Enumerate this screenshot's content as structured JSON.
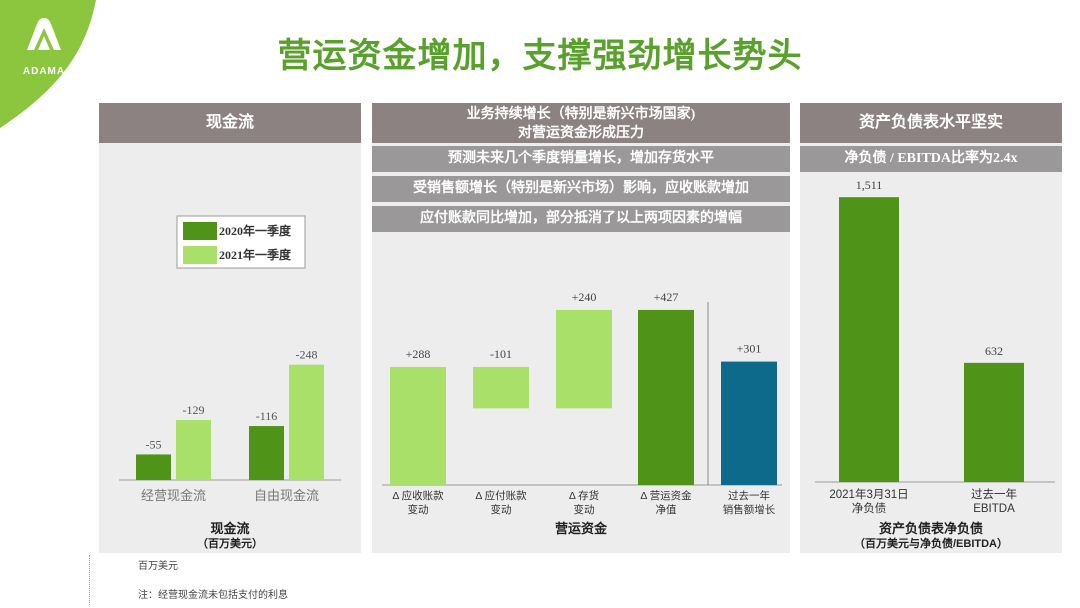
{
  "brand": {
    "name": "ADAMA"
  },
  "title": "营运资金增加，支撑强劲增长势头",
  "colors": {
    "accent_green": "#5aa02c",
    "dark_green": "#4f9419",
    "light_green": "#a8e06a",
    "teal": "#0e6a8b",
    "header_gray": "#8c8282"
  },
  "panels": {
    "cash_flow": {
      "header": "现金流",
      "footer_title": "现金流",
      "footer_sub": "（百万美元）",
      "chart_data": {
        "type": "bar",
        "categories": [
          "经营现金流",
          "自由现金流"
        ],
        "series": [
          {
            "name": "2020年一季度",
            "values": [
              -55,
              -116
            ],
            "labels": [
              "-55",
              "-116"
            ],
            "color": "#4f9419"
          },
          {
            "name": "2021年一季度",
            "values": [
              -129,
              -248
            ],
            "labels": [
              "-129",
              "-248"
            ],
            "color": "#a8e06a"
          }
        ],
        "legend_position": "top-right"
      }
    },
    "working_capital": {
      "header_line1": "业务持续增长（特别是新兴市场国家)",
      "header_line2": "对营运资金形成压力",
      "points": [
        "预测未来几个季度销量增长，增加存货水平",
        "受销售额增长（特别是新兴市场）影响，应收账款增加",
        "应付账款同比增加，部分抵消了以上两项因素的增幅"
      ],
      "footer_title": "营运资金",
      "chart_data": {
        "type": "bar",
        "subtype": "waterfall",
        "categories": [
          [
            "Δ 应收账款",
            "变动"
          ],
          [
            "Δ 应付账款",
            "变动"
          ],
          [
            "Δ  存货",
            "变动"
          ],
          [
            "Δ 营运资金",
            "净值"
          ],
          [
            "过去一年",
            "销售额增长"
          ]
        ],
        "values": [
          288,
          -101,
          240,
          427,
          301
        ],
        "labels": [
          "+288",
          "-101",
          "+240",
          "+427",
          "+301"
        ],
        "kinds": [
          "delta",
          "delta",
          "delta",
          "total",
          "separate"
        ]
      }
    },
    "balance_sheet": {
      "header": "资产负债表水平坚实",
      "subheader": "净负债 / EBITDA比率为2.4x",
      "footer_title": "资产负债表净负债",
      "footer_sub": "（百万美元与净负债/EBITDA）",
      "chart_data": {
        "type": "bar",
        "categories": [
          [
            "2021年3月31日",
            "净负债"
          ],
          [
            "过去一年",
            "EBITDA"
          ]
        ],
        "values": [
          1511,
          632
        ],
        "labels": [
          "1,511",
          "632"
        ]
      }
    }
  },
  "notes": {
    "unit": "百万美元",
    "footnote": "注：经营现金流未包括支付的利息"
  }
}
